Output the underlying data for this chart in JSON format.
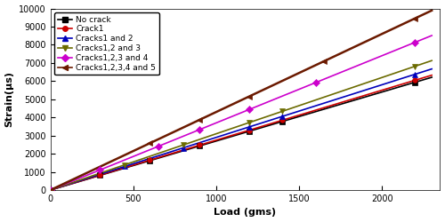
{
  "title": "",
  "xlabel": "Load (gms)",
  "ylabel": "Strain(μs)",
  "xlim": [
    0,
    2350
  ],
  "ylim": [
    0,
    10000
  ],
  "xticks": [
    0,
    500,
    1000,
    1500,
    2000
  ],
  "yticks": [
    0,
    1000,
    2000,
    3000,
    4000,
    5000,
    6000,
    7000,
    8000,
    9000,
    10000
  ],
  "series": [
    {
      "label": "No crack",
      "color": "#000000",
      "line_color": "#000000",
      "marker": "s",
      "markersize": 4,
      "markerfacecolor": "#000000",
      "slope": 2.7,
      "intercept": 0,
      "data_x": [
        0,
        300,
        600,
        900,
        1200,
        1400,
        2200
      ],
      "data_y": [
        0,
        810,
        1620,
        2430,
        3240,
        3780,
        5940
      ]
    },
    {
      "label": "Crack1",
      "color": "#cc0000",
      "line_color": "#cc0000",
      "marker": "o",
      "markersize": 4,
      "markerfacecolor": "#cc0000",
      "slope": 2.75,
      "intercept": 0,
      "data_x": [
        0,
        300,
        600,
        900,
        1200,
        1400,
        2200
      ],
      "data_y": [
        0,
        825,
        1650,
        2475,
        3300,
        3850,
        6050
      ]
    },
    {
      "label": "Cracks1 and 2",
      "color": "#0000bb",
      "line_color": "#0000bb",
      "marker": "^",
      "markersize": 4,
      "markerfacecolor": "#0000bb",
      "slope": 2.9,
      "intercept": 0,
      "data_x": [
        0,
        450,
        800,
        1200,
        1400,
        2200
      ],
      "data_y": [
        0,
        1305,
        2320,
        3480,
        4060,
        6380
      ]
    },
    {
      "label": "Cracks1,2 and 3",
      "color": "#6b6b00",
      "line_color": "#6b6b00",
      "marker": "v",
      "markersize": 4,
      "markerfacecolor": "#6b6b00",
      "slope": 3.1,
      "intercept": 0,
      "data_x": [
        0,
        450,
        800,
        1200,
        1400,
        2200
      ],
      "data_y": [
        0,
        1395,
        2480,
        3720,
        4340,
        6820
      ]
    },
    {
      "label": "Cracks1,2,3 and 4",
      "color": "#cc00cc",
      "line_color": "#cc00cc",
      "marker": "D",
      "markersize": 4,
      "markerfacecolor": "#cc00cc",
      "slope": 3.7,
      "intercept": 0,
      "data_x": [
        0,
        300,
        650,
        900,
        1200,
        1600,
        2200
      ],
      "data_y": [
        0,
        1110,
        2405,
        3330,
        4440,
        5920,
        8140
      ]
    },
    {
      "label": "Cracks1,2,3,4 and 5",
      "color": "#6b1a00",
      "line_color": "#6b1a00",
      "marker": "<",
      "markersize": 4,
      "markerfacecolor": "#6b1a00",
      "slope": 4.3,
      "intercept": 0,
      "data_x": [
        0,
        600,
        900,
        1200,
        1650,
        2200
      ],
      "data_y": [
        0,
        2580,
        3870,
        5160,
        7095,
        9460
      ]
    }
  ],
  "linewidths": [
    1.2,
    1.2,
    1.2,
    1.2,
    1.2,
    1.8
  ],
  "background_color": "#ffffff",
  "legend_fontsize": 6.5,
  "axis_label_fontsize": 8,
  "tick_fontsize": 7
}
